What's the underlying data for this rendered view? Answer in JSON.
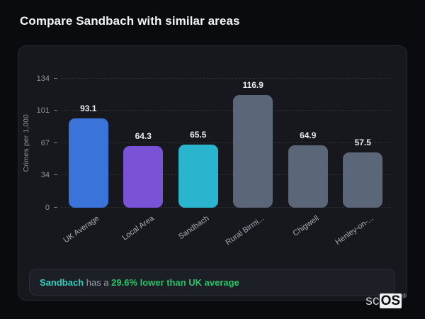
{
  "page": {
    "title": "Compare Sandbach with similar areas"
  },
  "chart_data": {
    "type": "bar",
    "categories": [
      "UK Average",
      "Local Area",
      "Sandbach",
      "Rural Birmi...",
      "Chigwell",
      "Henley-on-..."
    ],
    "values": [
      93.1,
      64.3,
      65.5,
      116.9,
      64.9,
      57.5
    ],
    "bar_colors": [
      "#3b74d9",
      "#7a52d6",
      "#2ab4ce",
      "#5b6678",
      "#5b6678",
      "#5b6678"
    ],
    "title": "",
    "xlabel": "",
    "ylabel": "Crimes per 1,000",
    "y_ticks": [
      0,
      34,
      67,
      101,
      134
    ],
    "ylim": [
      0,
      134
    ],
    "grid": "horizontal-dashed",
    "legend": "none",
    "value_labels": "above-bars",
    "x_label_rotation_deg": -35
  },
  "summary": {
    "subject": "Sandbach",
    "connector": " has a ",
    "highlight": "29.6% lower than UK average"
  },
  "branding": {
    "prefix": "sc",
    "suffix": "OS",
    "registered": "®"
  },
  "colors": {
    "page_background": "#0a0b0e",
    "card_background": "#16181d",
    "card_border": "#25282e",
    "grid_line": "#2a2e35",
    "tick_text": "#8f949c",
    "x_label_text": "#a6abb3",
    "value_label_text": "#e9ebee",
    "title_text": "#f3f4f6",
    "summary_subject": "#2fd0c0",
    "summary_highlight": "#27c468",
    "summary_connector": "#9aa0a8"
  }
}
